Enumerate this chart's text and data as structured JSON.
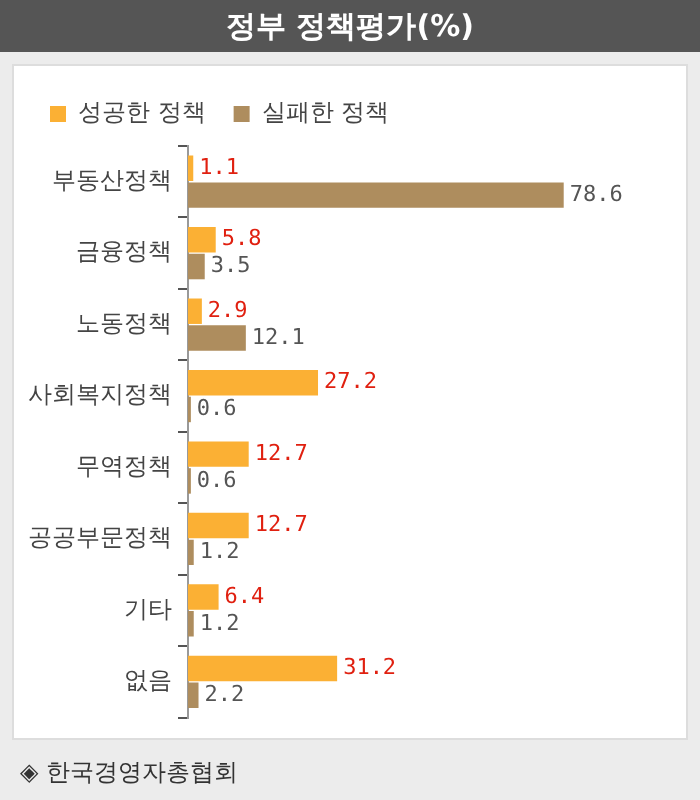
{
  "chart_data": {
    "type": "bar",
    "orientation": "horizontal",
    "title": "정부 정책평가(%)",
    "categories": [
      "부동산정책",
      "금융정책",
      "노동정책",
      "사회복지정책",
      "무역정책",
      "공공부문정책",
      "기타",
      "없음"
    ],
    "series": [
      {
        "name": "성공한 정책",
        "color": "#fbb034",
        "values": [
          1.1,
          5.8,
          2.9,
          27.2,
          12.7,
          12.7,
          6.4,
          31.2
        ]
      },
      {
        "name": "실패한 정책",
        "color": "#ae8d5e",
        "values": [
          78.6,
          3.5,
          12.1,
          0.6,
          0.6,
          1.2,
          1.2,
          2.2
        ]
      }
    ],
    "data_labels": true,
    "legend": "top left",
    "tick_labels": "y",
    "annotations": [
      "◈ 한국경영자총협회"
    ]
  }
}
